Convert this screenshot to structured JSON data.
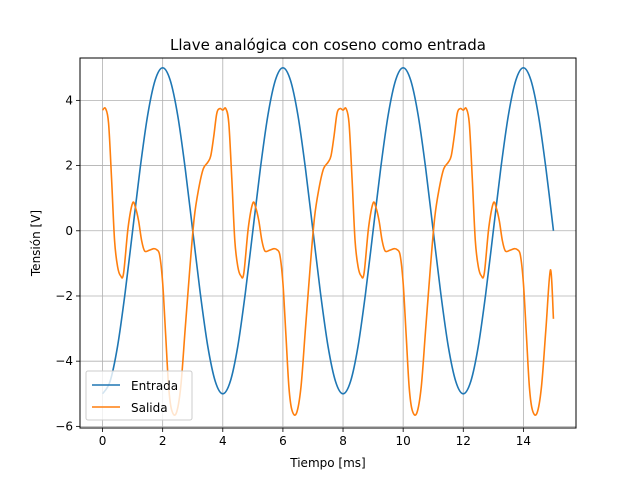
{
  "chart_data": {
    "type": "line",
    "title": "Llave analógica con coseno como entrada",
    "xlabel": "Tiempo [ms]",
    "ylabel": "Tensión [V]",
    "xlim": [
      -0.75,
      15.75
    ],
    "ylim": [
      -6.05,
      5.3
    ],
    "xticks": [
      0,
      2,
      4,
      6,
      8,
      10,
      12,
      14
    ],
    "yticks": [
      -6,
      -4,
      -2,
      0,
      2,
      4
    ],
    "grid": true,
    "legend_position": "lower-left",
    "series": [
      {
        "name": "Entrada",
        "color": "#1f77b4",
        "x": [
          0,
          0.25,
          0.5,
          0.75,
          1.0,
          1.25,
          1.5,
          1.75,
          2.0,
          2.25,
          2.5,
          2.75,
          3.0,
          3.25,
          3.5,
          3.75,
          4.0,
          4.25,
          4.5,
          4.75,
          5.0,
          5.25,
          5.5,
          5.75,
          6.0,
          6.25,
          6.5,
          6.75,
          7.0,
          7.25,
          7.5,
          7.75,
          8.0,
          8.25,
          8.5,
          8.75,
          9.0,
          9.25,
          9.5,
          9.75,
          10.0,
          10.25,
          10.5,
          10.75,
          11.0,
          11.25,
          11.5,
          11.75,
          12.0,
          12.25,
          12.5,
          12.75,
          13.0,
          13.25,
          13.5,
          13.75,
          14.0,
          14.25,
          14.5,
          14.75,
          15.0
        ],
        "y": [
          -5.0,
          -4.62,
          -3.54,
          -1.91,
          0.0,
          1.91,
          3.54,
          4.62,
          5.0,
          4.62,
          3.54,
          1.91,
          0.0,
          -1.91,
          -3.54,
          -4.62,
          -5.0,
          -4.62,
          -3.54,
          -1.91,
          0.0,
          1.91,
          3.54,
          4.62,
          5.0,
          4.62,
          3.54,
          1.91,
          0.0,
          -1.91,
          -3.54,
          -4.62,
          -5.0,
          -4.62,
          -3.54,
          -1.91,
          0.0,
          1.91,
          3.54,
          4.62,
          5.0,
          4.62,
          3.54,
          1.91,
          0.0,
          -1.91,
          -3.54,
          -4.62,
          -5.0,
          -4.62,
          -3.54,
          -1.91,
          0.0,
          1.91,
          3.54,
          4.62,
          5.0,
          4.62,
          3.54,
          1.91,
          0.0
        ]
      },
      {
        "name": "Salida",
        "color": "#ff7f0e",
        "x": [
          0,
          0.1,
          0.2,
          0.3,
          0.4,
          0.5,
          0.6,
          0.7,
          0.85,
          1.0,
          1.1,
          1.2,
          1.3,
          1.4,
          1.55,
          1.7,
          1.8,
          1.9,
          2.0,
          2.1,
          2.2,
          2.3,
          2.45,
          2.6,
          2.75,
          2.9,
          3.05,
          3.2,
          3.35,
          3.5,
          3.6,
          3.7,
          3.8,
          3.9,
          4.0,
          4.1,
          4.2,
          4.3,
          4.4,
          4.5,
          4.6,
          4.7,
          4.85,
          5.0,
          5.1,
          5.2,
          5.3,
          5.4,
          5.55,
          5.7,
          5.8,
          5.9,
          6.0,
          6.1,
          6.2,
          6.3,
          6.45,
          6.6,
          6.75,
          6.9,
          7.05,
          7.2,
          7.35,
          7.5,
          7.6,
          7.7,
          7.8,
          7.9,
          8.0,
          8.1,
          8.2,
          8.3,
          8.4,
          8.5,
          8.6,
          8.7,
          8.85,
          9.0,
          9.1,
          9.2,
          9.3,
          9.4,
          9.55,
          9.7,
          9.8,
          9.9,
          10.0,
          10.1,
          10.2,
          10.3,
          10.45,
          10.6,
          10.75,
          10.9,
          11.05,
          11.2,
          11.35,
          11.5,
          11.6,
          11.7,
          11.8,
          11.9,
          12.0,
          12.1,
          12.2,
          12.3,
          12.4,
          12.5,
          12.6,
          12.7,
          12.85,
          13.0,
          13.1,
          13.2,
          13.3,
          13.4,
          13.55,
          13.7,
          13.8,
          13.9,
          14.0,
          14.1,
          14.2,
          14.3,
          14.45,
          14.6,
          14.75,
          14.9,
          15.0
        ],
        "y": [
          3.7,
          3.75,
          3.3,
          1.6,
          -0.3,
          -1.1,
          -1.38,
          -1.3,
          0.1,
          0.85,
          0.7,
          0.3,
          -0.3,
          -0.62,
          -0.6,
          -0.55,
          -0.58,
          -0.75,
          -1.6,
          -3.2,
          -4.8,
          -5.5,
          -5.6,
          -4.8,
          -3.0,
          -1.2,
          0.4,
          1.3,
          1.9,
          2.1,
          2.3,
          2.9,
          3.6,
          3.75,
          3.7,
          3.75,
          3.3,
          1.6,
          -0.3,
          -1.1,
          -1.38,
          -1.3,
          0.1,
          0.85,
          0.7,
          0.3,
          -0.3,
          -0.62,
          -0.6,
          -0.55,
          -0.58,
          -0.75,
          -1.6,
          -3.2,
          -4.8,
          -5.5,
          -5.6,
          -4.8,
          -3.0,
          -1.2,
          0.4,
          1.3,
          1.9,
          2.1,
          2.3,
          2.9,
          3.6,
          3.75,
          3.7,
          3.75,
          3.3,
          1.6,
          -0.3,
          -1.1,
          -1.38,
          -1.3,
          0.1,
          0.85,
          0.7,
          0.3,
          -0.3,
          -0.62,
          -0.6,
          -0.55,
          -0.58,
          -0.75,
          -1.6,
          -3.2,
          -4.8,
          -5.5,
          -5.6,
          -4.8,
          -3.0,
          -1.2,
          0.4,
          1.3,
          1.9,
          2.1,
          2.3,
          2.9,
          3.6,
          3.75,
          3.7,
          3.75,
          3.3,
          1.6,
          -0.3,
          -1.1,
          -1.38,
          -1.3,
          0.1,
          0.85,
          0.7,
          0.3,
          -0.3,
          -0.62,
          -0.6,
          -0.55,
          -0.58,
          -0.75,
          -1.6,
          -3.2,
          -4.8,
          -5.5,
          -5.6,
          -4.8,
          -3.0,
          -1.2,
          -2.7
        ]
      }
    ]
  }
}
